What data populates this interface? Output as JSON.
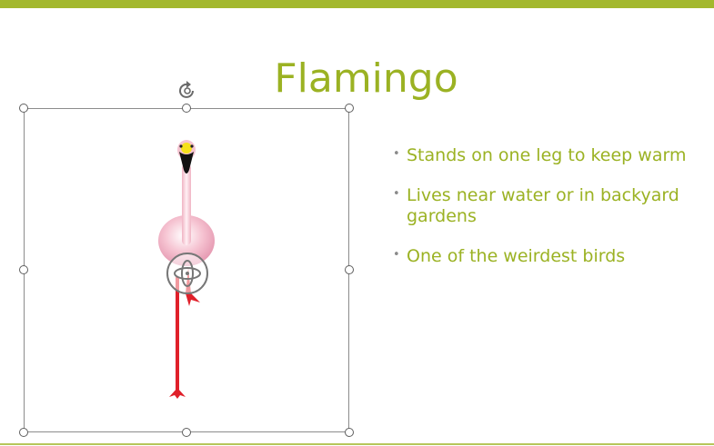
{
  "slide": {
    "title": "Flamingo",
    "bullets": [
      "Stands on one leg to keep warm",
      "Lives near water or in backyard gardens",
      "One of the weirdest birds"
    ]
  },
  "icons": {
    "rotate": "rotate-icon",
    "move3d": "3d-rotate-icon",
    "bullet": "bullet-dot-icon"
  },
  "colors": {
    "accent": "#a3b82e",
    "title_text": "#9bb223",
    "body_text": "#9bb223",
    "selection_border": "#8c8c8c"
  }
}
